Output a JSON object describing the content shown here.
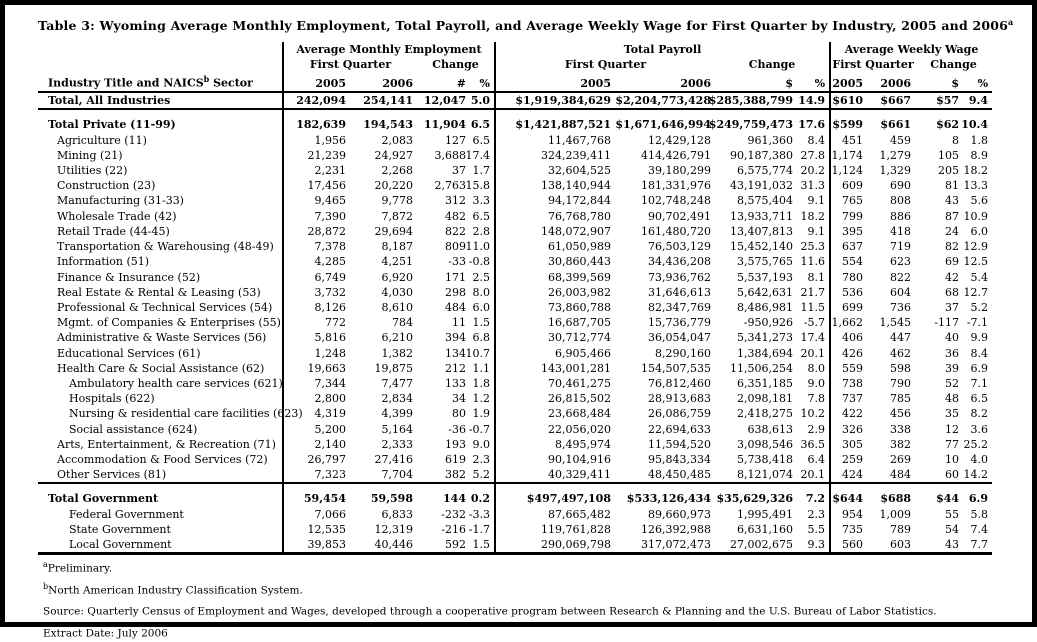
{
  "title": {
    "text": "Table 3:  Wyoming Average Monthly Employment, Total Payroll, and Average Weekly Wage for First Quarter by Industry, 2005 and 2006",
    "superscript": "a"
  },
  "header": {
    "industry_col": {
      "prefix": "Industry Title and NAICS",
      "superscript": "b",
      "suffix": " Sector"
    },
    "groups": [
      {
        "title": "Average Monthly Employment",
        "first_quarter": "First Quarter",
        "change": "Change",
        "columns": [
          "2005",
          "2006",
          "#",
          "%"
        ]
      },
      {
        "title": "Total Payroll",
        "first_quarter": "First Quarter",
        "change": "Change",
        "columns": [
          "2005",
          "2006",
          "$",
          "%"
        ]
      },
      {
        "title": "Average Weekly Wage",
        "first_quarter": "First Quarter",
        "change": "Change",
        "columns": [
          "2005",
          "2006",
          "$",
          "%"
        ]
      }
    ]
  },
  "rows": [
    {
      "label": "Total, All Industries",
      "indent": 0,
      "bold": true,
      "border_bottom": "medium",
      "spacer_before": false,
      "values": [
        "242,094",
        "254,141",
        "12,047",
        "5.0",
        "$1,919,384,629",
        "$2,204,773,428",
        "$285,388,799",
        "14.9",
        "$610",
        "$667",
        "$57",
        "9.4"
      ]
    },
    {
      "label": "Total Private (11-99)",
      "indent": 0,
      "bold": true,
      "border_bottom": "none",
      "spacer_before": true,
      "values": [
        "182,639",
        "194,543",
        "11,904",
        "6.5",
        "$1,421,887,521",
        "$1,671,646,994",
        "$249,759,473",
        "17.6",
        "$599",
        "$661",
        "$62",
        "10.4"
      ]
    },
    {
      "label": "Agriculture (11)",
      "indent": 1,
      "bold": false,
      "border_bottom": "none",
      "spacer_before": false,
      "values": [
        "1,956",
        "2,083",
        "127",
        "6.5",
        "11,467,768",
        "12,429,128",
        "961,360",
        "8.4",
        "451",
        "459",
        "8",
        "1.8"
      ]
    },
    {
      "label": "Mining (21)",
      "indent": 1,
      "bold": false,
      "border_bottom": "none",
      "spacer_before": false,
      "values": [
        "21,239",
        "24,927",
        "3,688",
        "17.4",
        "324,239,411",
        "414,426,791",
        "90,187,380",
        "27.8",
        "1,174",
        "1,279",
        "105",
        "8.9"
      ]
    },
    {
      "label": "Utilities (22)",
      "indent": 1,
      "bold": false,
      "border_bottom": "none",
      "spacer_before": false,
      "values": [
        "2,231",
        "2,268",
        "37",
        "1.7",
        "32,604,525",
        "39,180,299",
        "6,575,774",
        "20.2",
        "1,124",
        "1,329",
        "205",
        "18.2"
      ]
    },
    {
      "label": "Construction (23)",
      "indent": 1,
      "bold": false,
      "border_bottom": "none",
      "spacer_before": false,
      "values": [
        "17,456",
        "20,220",
        "2,763",
        "15.8",
        "138,140,944",
        "181,331,976",
        "43,191,032",
        "31.3",
        "609",
        "690",
        "81",
        "13.3"
      ]
    },
    {
      "label": "Manufacturing (31-33)",
      "indent": 1,
      "bold": false,
      "border_bottom": "none",
      "spacer_before": false,
      "values": [
        "9,465",
        "9,778",
        "312",
        "3.3",
        "94,172,844",
        "102,748,248",
        "8,575,404",
        "9.1",
        "765",
        "808",
        "43",
        "5.6"
      ]
    },
    {
      "label": "Wholesale Trade (42)",
      "indent": 1,
      "bold": false,
      "border_bottom": "none",
      "spacer_before": false,
      "values": [
        "7,390",
        "7,872",
        "482",
        "6.5",
        "76,768,780",
        "90,702,491",
        "13,933,711",
        "18.2",
        "799",
        "886",
        "87",
        "10.9"
      ]
    },
    {
      "label": "Retail Trade (44-45)",
      "indent": 1,
      "bold": false,
      "border_bottom": "none",
      "spacer_before": false,
      "values": [
        "28,872",
        "29,694",
        "822",
        "2.8",
        "148,072,907",
        "161,480,720",
        "13,407,813",
        "9.1",
        "395",
        "418",
        "24",
        "6.0"
      ]
    },
    {
      "label": "Transportation & Warehousing (48-49)",
      "indent": 1,
      "bold": false,
      "border_bottom": "none",
      "spacer_before": false,
      "values": [
        "7,378",
        "8,187",
        "809",
        "11.0",
        "61,050,989",
        "76,503,129",
        "15,452,140",
        "25.3",
        "637",
        "719",
        "82",
        "12.9"
      ]
    },
    {
      "label": "Information (51)",
      "indent": 1,
      "bold": false,
      "border_bottom": "none",
      "spacer_before": false,
      "values": [
        "4,285",
        "4,251",
        "-33",
        "-0.8",
        "30,860,443",
        "34,436,208",
        "3,575,765",
        "11.6",
        "554",
        "623",
        "69",
        "12.5"
      ]
    },
    {
      "label": "Finance & Insurance (52)",
      "indent": 1,
      "bold": false,
      "border_bottom": "none",
      "spacer_before": false,
      "values": [
        "6,749",
        "6,920",
        "171",
        "2.5",
        "68,399,569",
        "73,936,762",
        "5,537,193",
        "8.1",
        "780",
        "822",
        "42",
        "5.4"
      ]
    },
    {
      "label": "Real Estate & Rental & Leasing (53)",
      "indent": 1,
      "bold": false,
      "border_bottom": "none",
      "spacer_before": false,
      "values": [
        "3,732",
        "4,030",
        "298",
        "8.0",
        "26,003,982",
        "31,646,613",
        "5,642,631",
        "21.7",
        "536",
        "604",
        "68",
        "12.7"
      ]
    },
    {
      "label": "Professional & Technical Services (54)",
      "indent": 1,
      "bold": false,
      "border_bottom": "none",
      "spacer_before": false,
      "values": [
        "8,126",
        "8,610",
        "484",
        "6.0",
        "73,860,788",
        "82,347,769",
        "8,486,981",
        "11.5",
        "699",
        "736",
        "37",
        "5.2"
      ]
    },
    {
      "label": "Mgmt. of Companies & Enterprises (55)",
      "indent": 1,
      "bold": false,
      "border_bottom": "none",
      "spacer_before": false,
      "values": [
        "772",
        "784",
        "11",
        "1.5",
        "16,687,705",
        "15,736,779",
        "-950,926",
        "-5.7",
        "1,662",
        "1,545",
        "-117",
        "-7.1"
      ]
    },
    {
      "label": "Administrative & Waste Services (56)",
      "indent": 1,
      "bold": false,
      "border_bottom": "none",
      "spacer_before": false,
      "values": [
        "5,816",
        "6,210",
        "394",
        "6.8",
        "30,712,774",
        "36,054,047",
        "5,341,273",
        "17.4",
        "406",
        "447",
        "40",
        "9.9"
      ]
    },
    {
      "label": "Educational Services (61)",
      "indent": 1,
      "bold": false,
      "border_bottom": "none",
      "spacer_before": false,
      "values": [
        "1,248",
        "1,382",
        "134",
        "10.7",
        "6,905,466",
        "8,290,160",
        "1,384,694",
        "20.1",
        "426",
        "462",
        "36",
        "8.4"
      ]
    },
    {
      "label": "Health Care & Social Assistance (62)",
      "indent": 1,
      "bold": false,
      "border_bottom": "none",
      "spacer_before": false,
      "values": [
        "19,663",
        "19,875",
        "212",
        "1.1",
        "143,001,281",
        "154,507,535",
        "11,506,254",
        "8.0",
        "559",
        "598",
        "39",
        "6.9"
      ]
    },
    {
      "label": "Ambulatory health care services (621)",
      "indent": 2,
      "bold": false,
      "border_bottom": "none",
      "spacer_before": false,
      "values": [
        "7,344",
        "7,477",
        "133",
        "1.8",
        "70,461,275",
        "76,812,460",
        "6,351,185",
        "9.0",
        "738",
        "790",
        "52",
        "7.1"
      ]
    },
    {
      "label": "Hospitals (622)",
      "indent": 2,
      "bold": false,
      "border_bottom": "none",
      "spacer_before": false,
      "values": [
        "2,800",
        "2,834",
        "34",
        "1.2",
        "26,815,502",
        "28,913,683",
        "2,098,181",
        "7.8",
        "737",
        "785",
        "48",
        "6.5"
      ]
    },
    {
      "label": "Nursing & residential care facilities (623)",
      "indent": 2,
      "bold": false,
      "border_bottom": "none",
      "spacer_before": false,
      "values": [
        "4,319",
        "4,399",
        "80",
        "1.9",
        "23,668,484",
        "26,086,759",
        "2,418,275",
        "10.2",
        "422",
        "456",
        "35",
        "8.2"
      ]
    },
    {
      "label": "Social assistance (624)",
      "indent": 2,
      "bold": false,
      "border_bottom": "none",
      "spacer_before": false,
      "values": [
        "5,200",
        "5,164",
        "-36",
        "-0.7",
        "22,056,020",
        "22,694,633",
        "638,613",
        "2.9",
        "326",
        "338",
        "12",
        "3.6"
      ]
    },
    {
      "label": "Arts, Entertainment, & Recreation (71)",
      "indent": 1,
      "bold": false,
      "border_bottom": "none",
      "spacer_before": false,
      "values": [
        "2,140",
        "2,333",
        "193",
        "9.0",
        "8,495,974",
        "11,594,520",
        "3,098,546",
        "36.5",
        "305",
        "382",
        "77",
        "25.2"
      ]
    },
    {
      "label": "Accommodation & Food Services (72)",
      "indent": 1,
      "bold": false,
      "border_bottom": "none",
      "spacer_before": false,
      "values": [
        "26,797",
        "27,416",
        "619",
        "2.3",
        "90,104,916",
        "95,843,334",
        "5,738,418",
        "6.4",
        "259",
        "269",
        "10",
        "4.0"
      ]
    },
    {
      "label": "Other Services (81)",
      "indent": 1,
      "bold": false,
      "border_bottom": "medium",
      "spacer_before": false,
      "values": [
        "7,323",
        "7,704",
        "382",
        "5.2",
        "40,329,411",
        "48,450,485",
        "8,121,074",
        "20.1",
        "424",
        "484",
        "60",
        "14.2"
      ]
    },
    {
      "label": "Total Government",
      "indent": 0,
      "bold": true,
      "border_bottom": "none",
      "spacer_before": true,
      "values": [
        "59,454",
        "59,598",
        "144",
        "0.2",
        "$497,497,108",
        "$533,126,434",
        "$35,629,326",
        "7.2",
        "$644",
        "$688",
        "$44",
        "6.9"
      ]
    },
    {
      "label": "Federal Government",
      "indent": 2,
      "bold": false,
      "border_bottom": "none",
      "spacer_before": false,
      "values": [
        "7,066",
        "6,833",
        "-232",
        "-3.3",
        "87,665,482",
        "89,660,973",
        "1,995,491",
        "2.3",
        "954",
        "1,009",
        "55",
        "5.8"
      ]
    },
    {
      "label": "State Government",
      "indent": 2,
      "bold": false,
      "border_bottom": "none",
      "spacer_before": false,
      "values": [
        "12,535",
        "12,319",
        "-216",
        "-1.7",
        "119,761,828",
        "126,392,988",
        "6,631,160",
        "5.5",
        "735",
        "789",
        "54",
        "7.4"
      ]
    },
    {
      "label": "Local Government",
      "indent": 2,
      "bold": false,
      "border_bottom": "heavy",
      "spacer_before": false,
      "values": [
        "39,853",
        "40,446",
        "592",
        "1.5",
        "290,069,798",
        "317,072,473",
        "27,002,675",
        "9.3",
        "560",
        "603",
        "43",
        "7.7"
      ]
    }
  ],
  "footnotes": [
    {
      "superscript": "a",
      "text": "Preliminary."
    },
    {
      "superscript": "b",
      "text": "North American Industry Classification System."
    },
    {
      "superscript": "",
      "text": "Source: Quarterly Census of Employment and Wages, developed through a cooperative program between Research & Planning and the U.S. Bureau of Labor Statistics."
    },
    {
      "superscript": "",
      "text": "Extract Date: July 2006"
    }
  ]
}
